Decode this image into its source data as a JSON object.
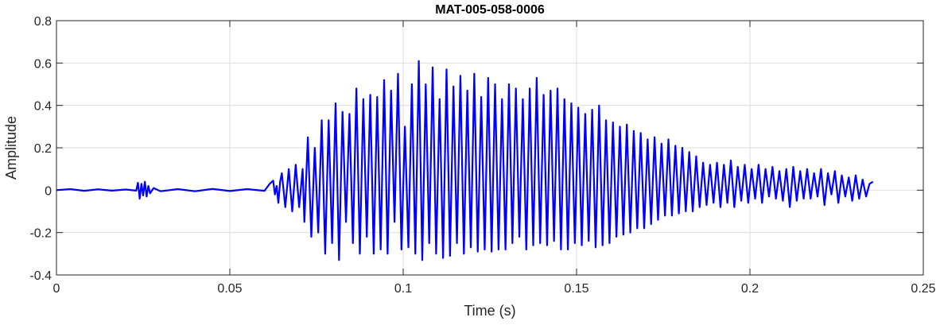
{
  "chart_data": {
    "type": "line",
    "title": "MAT-005-058-0006",
    "xlabel": "Time (s)",
    "ylabel": "Amplitude",
    "xlim": [
      0,
      0.25
    ],
    "ylim": [
      -0.4,
      0.8
    ],
    "xticks": [
      0,
      0.05,
      0.1,
      0.15,
      0.2,
      0.25
    ],
    "xtick_labels": [
      "0",
      "0.05",
      "0.1",
      "0.15",
      "0.2",
      "0.25"
    ],
    "yticks": [
      -0.4,
      -0.2,
      0,
      0.2,
      0.4,
      0.6,
      0.8
    ],
    "ytick_labels": [
      "-0.4",
      "-0.2",
      "0",
      "0.2",
      "0.4",
      "0.6",
      "0.8"
    ],
    "grid": true,
    "line_color": "#0000ff",
    "series": [
      {
        "x": [
          0.0,
          0.004,
          0.008,
          0.012,
          0.016,
          0.02,
          0.023,
          0.0235,
          0.024,
          0.0245,
          0.025,
          0.0255,
          0.026,
          0.0265,
          0.027,
          0.028,
          0.03,
          0.035,
          0.04,
          0.045,
          0.05,
          0.055,
          0.06,
          0.0615,
          0.0625,
          0.063,
          0.0635,
          0.064,
          0.0645,
          0.065,
          0.066,
          0.067,
          0.068,
          0.069,
          0.07,
          0.071,
          0.0715,
          0.0725,
          0.0735,
          0.0745,
          0.0755,
          0.0765,
          0.0775,
          0.0785,
          0.0795,
          0.0805,
          0.0815,
          0.0825,
          0.0835,
          0.0845,
          0.0855,
          0.0865,
          0.0875,
          0.0885,
          0.0895,
          0.0905,
          0.0915,
          0.0925,
          0.0935,
          0.0945,
          0.0955,
          0.0965,
          0.0975,
          0.0985,
          0.0995,
          0.1005,
          0.1015,
          0.1025,
          0.1035,
          0.1045,
          0.1055,
          0.1065,
          0.1075,
          0.1085,
          0.1095,
          0.1105,
          0.1115,
          0.1125,
          0.1135,
          0.1145,
          0.1155,
          0.1165,
          0.1175,
          0.1185,
          0.1195,
          0.1205,
          0.1215,
          0.1225,
          0.1235,
          0.1245,
          0.1255,
          0.1265,
          0.1275,
          0.1285,
          0.1295,
          0.1305,
          0.1315,
          0.1325,
          0.1335,
          0.1345,
          0.1355,
          0.1365,
          0.1375,
          0.1385,
          0.1395,
          0.1405,
          0.1415,
          0.1425,
          0.1435,
          0.1445,
          0.1455,
          0.1465,
          0.1475,
          0.1485,
          0.1495,
          0.1505,
          0.1515,
          0.1525,
          0.1535,
          0.1545,
          0.1555,
          0.1565,
          0.1575,
          0.1585,
          0.1595,
          0.1605,
          0.1615,
          0.1625,
          0.1635,
          0.1645,
          0.1655,
          0.1665,
          0.1675,
          0.1685,
          0.1695,
          0.1705,
          0.1715,
          0.1725,
          0.1735,
          0.1745,
          0.1755,
          0.1765,
          0.1775,
          0.1785,
          0.1795,
          0.1805,
          0.1815,
          0.1825,
          0.1835,
          0.1845,
          0.1855,
          0.1865,
          0.1875,
          0.1885,
          0.1895,
          0.1905,
          0.1915,
          0.1925,
          0.1935,
          0.1945,
          0.1955,
          0.1965,
          0.1975,
          0.1985,
          0.1995,
          0.2005,
          0.2015,
          0.2025,
          0.2035,
          0.2045,
          0.2055,
          0.2065,
          0.2075,
          0.2085,
          0.2095,
          0.2105,
          0.2115,
          0.2125,
          0.2135,
          0.2145,
          0.2155,
          0.2165,
          0.2175,
          0.2185,
          0.2195,
          0.2205,
          0.2215,
          0.2225,
          0.2235,
          0.2245,
          0.2255,
          0.2265,
          0.2275,
          0.2285,
          0.2295,
          0.2305,
          0.2315,
          0.2325,
          0.2335,
          0.2345,
          0.2355
        ],
        "y": [
          0.0,
          0.005,
          -0.003,
          0.004,
          -0.002,
          0.003,
          -0.002,
          0.035,
          -0.04,
          0.03,
          -0.025,
          0.04,
          -0.03,
          0.02,
          -0.015,
          0.01,
          -0.005,
          0.005,
          -0.005,
          0.006,
          -0.004,
          0.005,
          -0.003,
          0.03,
          0.045,
          -0.02,
          0.02,
          -0.06,
          0.04,
          0.08,
          -0.08,
          0.1,
          -0.1,
          0.12,
          -0.08,
          0.1,
          -0.15,
          0.25,
          -0.22,
          0.2,
          -0.2,
          0.33,
          -0.3,
          0.33,
          -0.25,
          0.41,
          -0.33,
          0.37,
          -0.15,
          0.36,
          -0.25,
          0.48,
          -0.3,
          0.43,
          -0.22,
          0.45,
          -0.3,
          0.44,
          -0.28,
          0.52,
          -0.3,
          0.47,
          -0.15,
          0.55,
          -0.28,
          0.3,
          -0.27,
          0.5,
          -0.3,
          0.61,
          -0.33,
          0.5,
          -0.25,
          0.58,
          -0.3,
          0.43,
          -0.32,
          0.57,
          -0.31,
          0.49,
          -0.25,
          0.54,
          -0.3,
          0.47,
          -0.27,
          0.55,
          -0.29,
          0.44,
          -0.28,
          0.53,
          -0.29,
          0.5,
          -0.28,
          0.43,
          -0.28,
          0.5,
          -0.25,
          0.48,
          -0.22,
          0.43,
          -0.28,
          0.48,
          -0.26,
          0.53,
          -0.25,
          0.45,
          -0.26,
          0.47,
          -0.24,
          0.48,
          -0.28,
          0.43,
          -0.28,
          0.41,
          -0.25,
          0.39,
          -0.26,
          0.36,
          -0.24,
          0.38,
          -0.27,
          0.4,
          -0.26,
          0.33,
          -0.25,
          0.32,
          -0.22,
          0.3,
          -0.21,
          0.31,
          -0.2,
          0.28,
          -0.18,
          0.27,
          -0.18,
          0.24,
          -0.16,
          0.25,
          -0.14,
          0.22,
          -0.12,
          0.24,
          -0.12,
          0.21,
          -0.11,
          0.2,
          -0.1,
          0.18,
          -0.1,
          0.16,
          -0.08,
          0.13,
          -0.07,
          0.12,
          -0.06,
          0.13,
          -0.08,
          0.12,
          -0.06,
          0.14,
          -0.08,
          0.11,
          -0.05,
          0.12,
          -0.06,
          0.1,
          -0.04,
          0.12,
          -0.06,
          0.1,
          -0.03,
          0.11,
          -0.04,
          0.09,
          -0.05,
          0.1,
          -0.08,
          0.11,
          -0.05,
          0.09,
          -0.04,
          0.1,
          -0.04,
          0.08,
          -0.03,
          0.1,
          -0.07,
          0.08,
          -0.02,
          0.09,
          -0.06,
          0.07,
          -0.03,
          0.06,
          -0.05,
          0.07,
          -0.04,
          0.05,
          -0.03,
          0.03,
          0.04
        ]
      }
    ]
  }
}
